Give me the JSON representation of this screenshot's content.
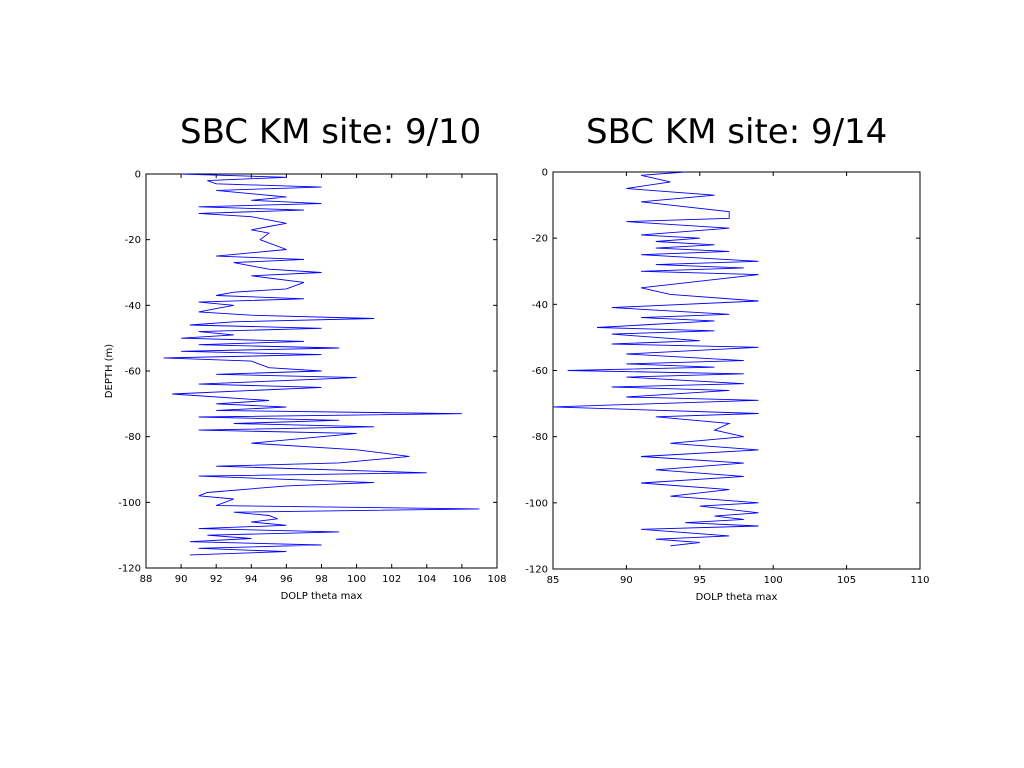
{
  "slide": {
    "title_left": "SBC KM site: 9/10",
    "title_right": "SBC KM site: 9/14"
  },
  "colors": {
    "line": "#0000ff",
    "axes": "#000000",
    "background": "#ffffff"
  },
  "chart_data": [
    {
      "type": "line",
      "title": "SBC KM site: 9/10",
      "xlabel": "DOLP theta max",
      "ylabel": "DEPTH (m)",
      "xlim": [
        88,
        108
      ],
      "ylim": [
        -120,
        0
      ],
      "xticks": [
        88,
        90,
        92,
        94,
        96,
        98,
        100,
        102,
        104,
        106,
        108
      ],
      "yticks": [
        0,
        -20,
        -40,
        -60,
        -80,
        -100,
        -120
      ],
      "grid": false,
      "series": [
        {
          "x": [
            90,
            96,
            91.5,
            92,
            98,
            92,
            96,
            94,
            98,
            91,
            97,
            91,
            94,
            96,
            95,
            94,
            95,
            94.5,
            96,
            92,
            97,
            93,
            94,
            95,
            98,
            94,
            97,
            96,
            93,
            92,
            97,
            91,
            93,
            92,
            91,
            94,
            101,
            93,
            90.5,
            98,
            91,
            93,
            90,
            97,
            91,
            99,
            90,
            98,
            89,
            94,
            95,
            98,
            92,
            100,
            91,
            98,
            89.5,
            95,
            92,
            96,
            92,
            106,
            91,
            99,
            93,
            101,
            91,
            100,
            98,
            94,
            100,
            103,
            99,
            92,
            104,
            91,
            101,
            96,
            91.5,
            91,
            93,
            92,
            107,
            93,
            95,
            95.5,
            94,
            96,
            91,
            99,
            91.5,
            94,
            90.5,
            98,
            91,
            96,
            90.5
          ],
          "y": [
            0,
            -1,
            -2,
            -3,
            -4,
            -5,
            -7,
            -8,
            -9,
            -10,
            -11,
            -12,
            -13,
            -15,
            -16,
            -17,
            -18,
            -20,
            -23,
            -25,
            -26,
            -27,
            -28,
            -29,
            -30,
            -31,
            -33,
            -35,
            -36,
            -37,
            -38,
            -39,
            -40,
            -41,
            -42,
            -43,
            -44,
            -45,
            -46,
            -47,
            -48,
            -49,
            -50,
            -51,
            -52,
            -53,
            -54,
            -55,
            -56,
            -57,
            -59,
            -60,
            -61,
            -62,
            -64,
            -65,
            -67,
            -69,
            -70,
            -71,
            -72,
            -73,
            -74,
            -75,
            -76,
            -77,
            -78,
            -79,
            -80,
            -82,
            -84,
            -86,
            -88,
            -89,
            -91,
            -92,
            -94,
            -95,
            -97,
            -98,
            -99,
            -101,
            -102,
            -103,
            -104,
            -105,
            -106,
            -107,
            -108,
            -109,
            -110,
            -111,
            -112,
            -113,
            -114,
            -115,
            -116
          ]
        }
      ]
    },
    {
      "type": "line",
      "title": "SBC KM site: 9/14",
      "xlabel": "DOLP theta max",
      "ylabel": "",
      "xlim": [
        85,
        110
      ],
      "ylim": [
        -120,
        0
      ],
      "xticks": [
        85,
        90,
        95,
        100,
        105,
        110
      ],
      "yticks": [
        0,
        -20,
        -40,
        -60,
        -80,
        -100,
        -120
      ],
      "grid": false,
      "series": [
        {
          "x": [
            94,
            91,
            93,
            90,
            96,
            91,
            97,
            97,
            90,
            97,
            91,
            95,
            92,
            96,
            92,
            97,
            91,
            99,
            92,
            98,
            91,
            99,
            95,
            91,
            93,
            99,
            89,
            97,
            91,
            96,
            88,
            96,
            89,
            95,
            89,
            99,
            90,
            98,
            90,
            96,
            86,
            98,
            90,
            98,
            89,
            97,
            90,
            99,
            85,
            99,
            92,
            97,
            96,
            98,
            93,
            99,
            91,
            98,
            92,
            98,
            91,
            97,
            93,
            99,
            95,
            97,
            99,
            96,
            98,
            94,
            99,
            91,
            97,
            92,
            95,
            93
          ],
          "y": [
            0,
            -1,
            -3,
            -5,
            -7,
            -9,
            -12,
            -14,
            -15,
            -17,
            -19,
            -20,
            -21,
            -22,
            -23,
            -24,
            -25,
            -27,
            -28,
            -29,
            -30,
            -31,
            -33,
            -35,
            -37,
            -39,
            -41,
            -43,
            -44,
            -45,
            -47,
            -48,
            -49,
            -51,
            -52,
            -53,
            -55,
            -57,
            -58,
            -59,
            -60,
            -61,
            -62,
            -64,
            -65,
            -66,
            -68,
            -69,
            -71,
            -73,
            -74,
            -76,
            -78,
            -80,
            -82,
            -84,
            -86,
            -88,
            -90,
            -92,
            -94,
            -96,
            -98,
            -100,
            -101,
            -102,
            -103,
            -104,
            -105,
            -106,
            -107,
            -108,
            -110,
            -111,
            -112,
            -113
          ]
        }
      ]
    }
  ]
}
